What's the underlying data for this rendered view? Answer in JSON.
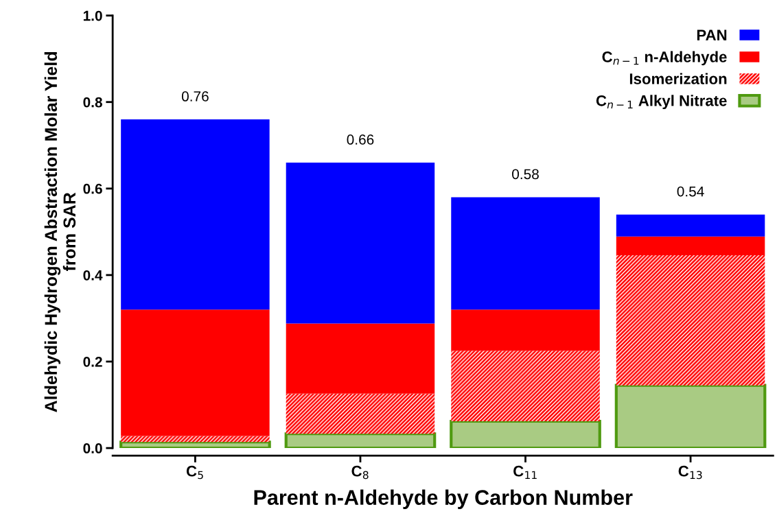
{
  "chart_data": {
    "type": "bar",
    "stacked": true,
    "ylabel": "Aldehydic Hydrogen Abstraction Molar Yield\nfrom SAR",
    "xlabel": "Parent n-Aldehyde by Carbon Number",
    "categories": [
      "C$_{5}$",
      "C$_{8}$",
      "C$_{11}$",
      "C$_{13}$"
    ],
    "series": [
      {
        "name": "C$_{n−1}$ Alkyl Nitrate",
        "color": "#a9cb83",
        "values": [
          0.014,
          0.033,
          0.062,
          0.145
        ]
      },
      {
        "name": "Isomerization",
        "color": "#ff0000",
        "values": [
          0.014,
          0.093,
          0.163,
          0.301
        ]
      },
      {
        "name": "C$_{n−1}$ n-Aldehyde",
        "color": "#ff0000",
        "values": [
          0.292,
          0.162,
          0.095,
          0.043
        ]
      },
      {
        "name": "PAN",
        "color": "#0000ff",
        "values": [
          0.44,
          0.372,
          0.26,
          0.051
        ]
      }
    ],
    "totals": [
      "0.76",
      "0.66",
      "0.58",
      "0.54"
    ],
    "ylim": [
      0,
      1.0
    ],
    "yticks": [
      {
        "value": 0,
        "label": "0.0"
      },
      {
        "value": 0.2,
        "label": "0.2"
      },
      {
        "value": 0.4,
        "label": "0.4"
      },
      {
        "value": 0.6,
        "label": "0.6"
      },
      {
        "value": 0.8,
        "label": "0.8"
      },
      {
        "value": 1.0,
        "label": "1.0"
      }
    ],
    "grid": false,
    "legend": "top right"
  }
}
